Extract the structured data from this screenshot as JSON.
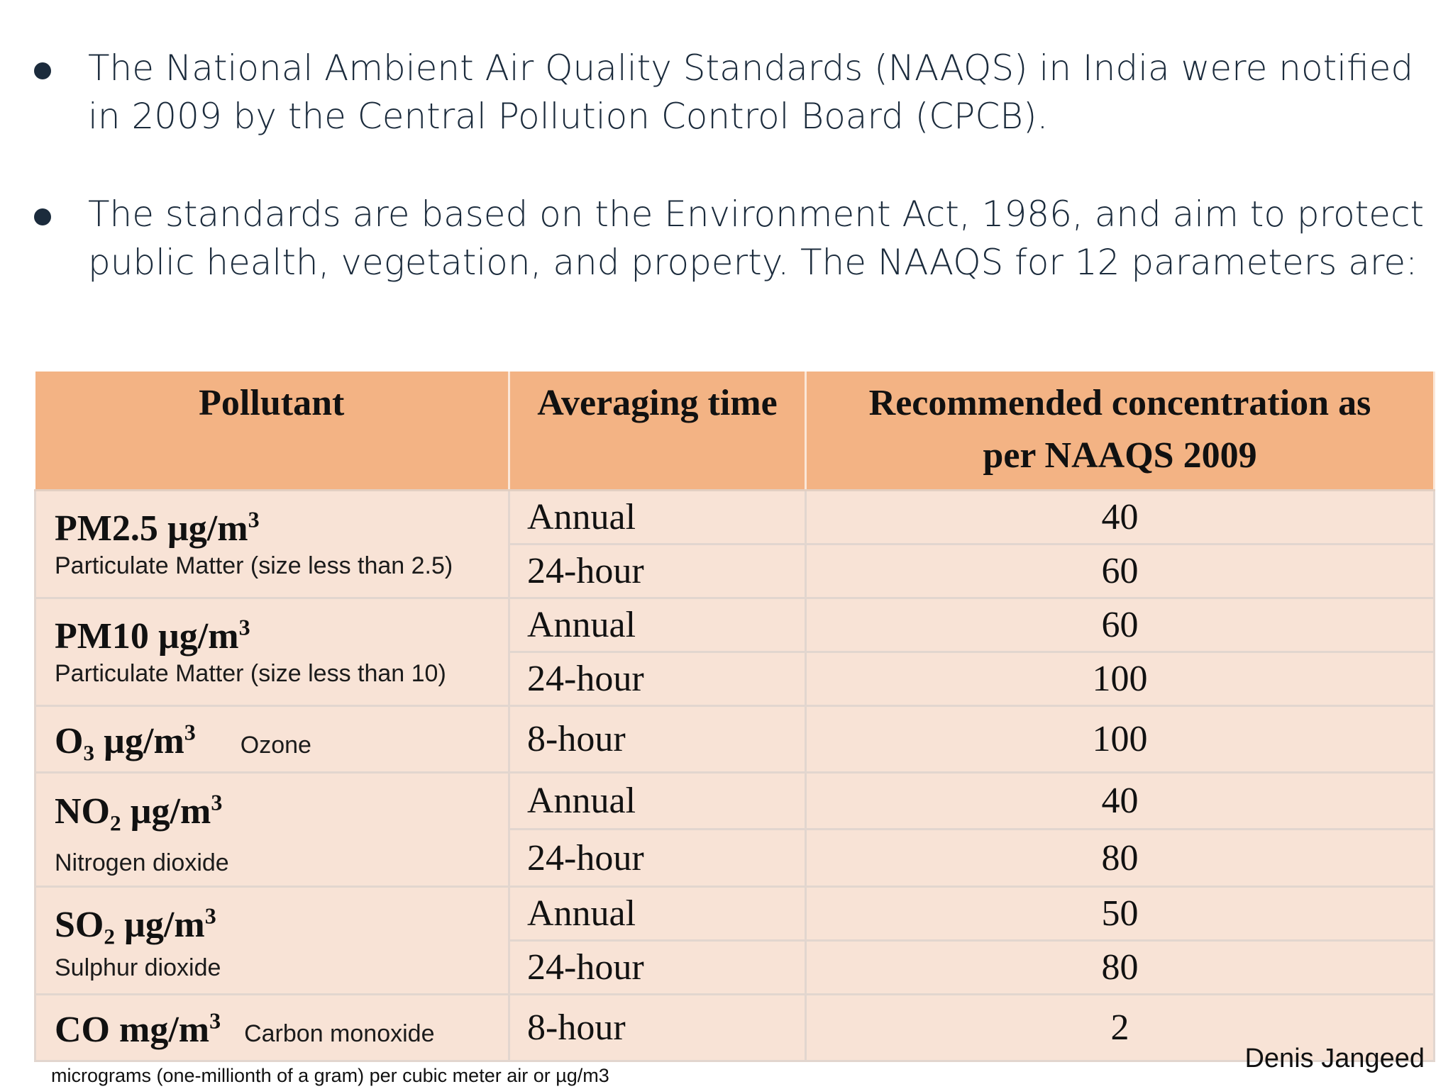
{
  "bullets": [
    "The National Ambient Air Quality Standards (NAAQS) in India were notified in 2009 by the Central Pollution Control Board (CPCB).",
    "The standards are based on the Environment Act, 1986, and aim to protect public health, vegetation, and property. The NAAQS for 12 parameters are:"
  ],
  "table": {
    "headers": [
      "Pollutant",
      "Averaging time",
      "Recommended concentration as per NAAQS 2009"
    ],
    "pollutants": [
      {
        "formula": "PM2.5 µg/m",
        "sup": "3",
        "desc": "Particulate Matter (size less than 2.5)"
      },
      {
        "formula": "PM10 µg/m",
        "sup": "3",
        "desc": "Particulate Matter (size less than 10)"
      },
      {
        "formula": "O₃ µg/m",
        "sup": "3",
        "desc": "Ozone"
      },
      {
        "formula": "NO₂ µg/m",
        "sup": "3",
        "desc": "Nitrogen dioxide"
      },
      {
        "formula": "SO₂ µg/m",
        "sup": "3",
        "desc": "Sulphur dioxide"
      },
      {
        "formula": "CO mg/m",
        "sup": "3",
        "desc": "Carbon monoxide"
      }
    ],
    "rows": [
      {
        "time": "Annual",
        "value": "40"
      },
      {
        "time": "24-hour",
        "value": "60"
      },
      {
        "time": "Annual",
        "value": "60"
      },
      {
        "time": "24-hour",
        "value": "100"
      },
      {
        "time": "8-hour",
        "value": "100"
      },
      {
        "time": "Annual",
        "value": "40"
      },
      {
        "time": "24-hour",
        "value": "80"
      },
      {
        "time": "Annual",
        "value": "50"
      },
      {
        "time": "24-hour",
        "value": "80"
      },
      {
        "time": "8-hour",
        "value": "2"
      }
    ]
  },
  "footnote": "micrograms (one-millionth of a gram) per cubic meter air or µg/m3",
  "author": "Denis Jangeed"
}
